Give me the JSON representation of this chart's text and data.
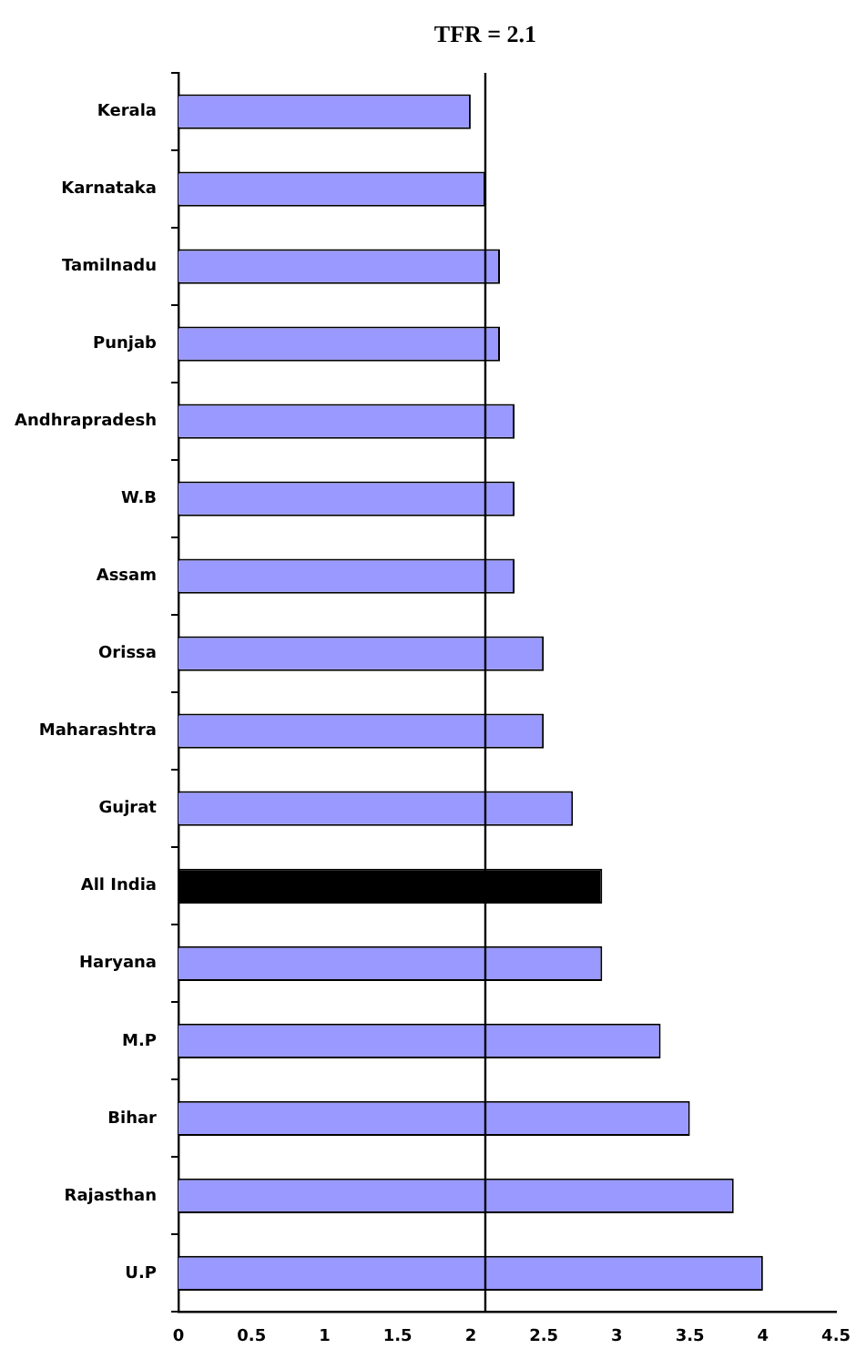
{
  "chart_data": {
    "type": "bar",
    "orientation": "horizontal",
    "categories": [
      "Kerala",
      "Karnataka",
      "Tamilnadu",
      "Punjab",
      "Andhrapradesh",
      "W.B",
      "Assam",
      "Orissa",
      "Maharashtra",
      "Gujrat",
      "All India",
      "Haryana",
      "M.P",
      "Bihar",
      "Rajasthan",
      "U.P"
    ],
    "values": [
      2.0,
      2.1,
      2.2,
      2.2,
      2.3,
      2.3,
      2.3,
      2.5,
      2.5,
      2.7,
      2.9,
      2.9,
      3.3,
      3.5,
      3.8,
      4.0
    ],
    "colors": [
      "#9999ff",
      "#9999ff",
      "#9999ff",
      "#9999ff",
      "#9999ff",
      "#9999ff",
      "#9999ff",
      "#9999ff",
      "#9999ff",
      "#9999ff",
      "#000000",
      "#9999ff",
      "#9999ff",
      "#9999ff",
      "#9999ff",
      "#9999ff"
    ],
    "xlim": [
      0,
      4.5
    ],
    "xticks": [
      0,
      0.5,
      1,
      1.5,
      2,
      2.5,
      3,
      3.5,
      4,
      4.5
    ],
    "ref_lines": [
      {
        "axis": "x",
        "value": 2.1,
        "label": "TFR = 2.1",
        "color": "#000000"
      }
    ],
    "grid": false,
    "legend": false
  }
}
